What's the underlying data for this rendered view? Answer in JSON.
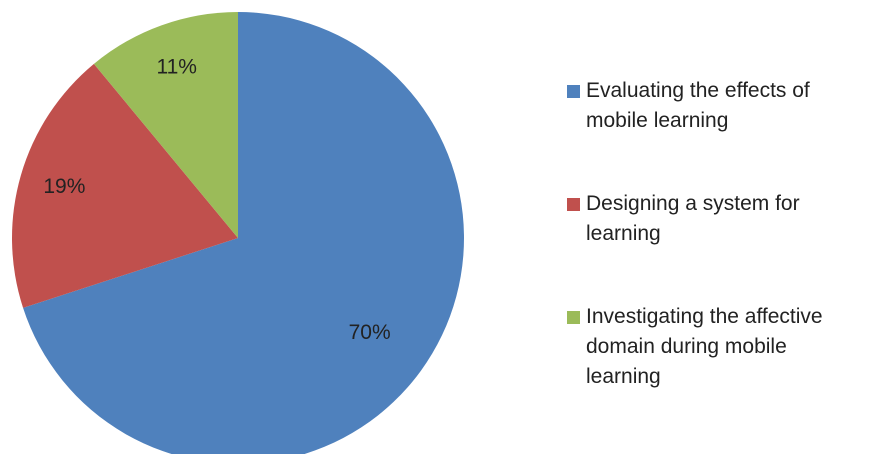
{
  "chart_data": {
    "type": "pie",
    "categories": [
      "Evaluating the effects of mobile learning",
      "Designing a system for learning",
      "Investigating the affective domain during mobile learning"
    ],
    "values": [
      70,
      19,
      11
    ],
    "value_labels": [
      "70%",
      "19%",
      "11%"
    ],
    "colors": [
      "#4f81bd",
      "#c0504d",
      "#9bbb59"
    ],
    "legend": "right"
  }
}
